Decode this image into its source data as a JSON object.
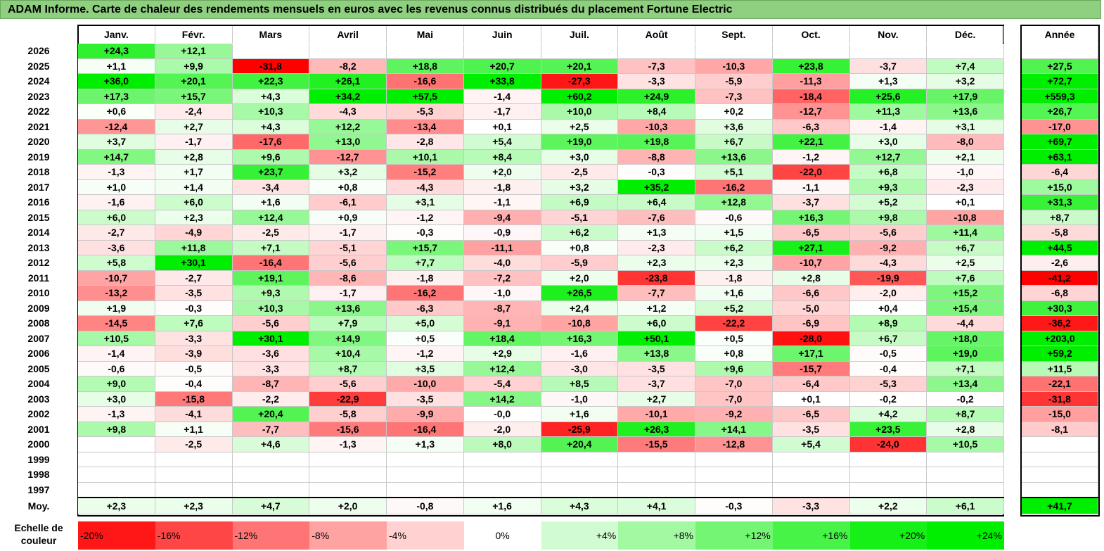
{
  "title": "ADAM Informe. Carte de chaleur des rendements mensuels en euros avec les revenus connus distribués du placement Fortune Electric",
  "chart_data": {
    "type": "heatmap",
    "title": "ADAM Informe. Carte de chaleur des rendements mensuels en euros avec les revenus connus distribués du placement Fortune Electric",
    "months": [
      "Janv.",
      "Févr.",
      "Mars",
      "Avril",
      "Mai",
      "Juin",
      "Juil.",
      "Août",
      "Sept.",
      "Oct.",
      "Nov.",
      "Déc."
    ],
    "year_header": "Année",
    "years": [
      "2026",
      "2025",
      "2024",
      "2023",
      "2022",
      "2021",
      "2020",
      "2019",
      "2018",
      "2017",
      "2016",
      "2015",
      "2014",
      "2013",
      "2012",
      "2011",
      "2010",
      "2009",
      "2008",
      "2007",
      "2006",
      "2005",
      "2004",
      "2003",
      "2002",
      "2001",
      "2000",
      "1999",
      "1998",
      "1997"
    ],
    "values": [
      [
        24.3,
        12.1,
        null,
        null,
        null,
        null,
        null,
        null,
        null,
        null,
        null,
        null
      ],
      [
        1.1,
        9.9,
        -31.8,
        -8.2,
        18.8,
        20.7,
        20.1,
        -7.3,
        -10.3,
        23.8,
        -3.7,
        7.4
      ],
      [
        36.0,
        20.1,
        22.3,
        26.1,
        -16.6,
        33.8,
        -27.3,
        -3.3,
        -5.9,
        -11.3,
        1.3,
        3.2
      ],
      [
        17.3,
        15.7,
        4.3,
        34.2,
        57.5,
        -1.4,
        60.2,
        24.9,
        -7.3,
        -18.4,
        25.6,
        17.9
      ],
      [
        0.6,
        -2.4,
        10.3,
        -4.3,
        -5.3,
        -1.7,
        10.0,
        8.4,
        0.2,
        -12.7,
        11.3,
        13.6
      ],
      [
        -12.4,
        2.7,
        4.3,
        12.2,
        -13.4,
        0.1,
        2.5,
        -10.3,
        3.6,
        -6.3,
        -1.4,
        3.1
      ],
      [
        3.7,
        -1.7,
        -17.6,
        13.0,
        -2.8,
        5.4,
        19.0,
        19.8,
        6.7,
        22.1,
        3.0,
        -8.0
      ],
      [
        14.7,
        2.8,
        9.6,
        -12.7,
        10.1,
        8.4,
        3.0,
        -8.8,
        13.6,
        -1.2,
        12.7,
        2.1
      ],
      [
        -1.3,
        1.7,
        23.7,
        3.2,
        -15.2,
        2.0,
        -2.5,
        -0.3,
        5.1,
        -22.0,
        6.8,
        -1.0
      ],
      [
        1.0,
        1.4,
        -3.4,
        0.8,
        -4.3,
        -1.8,
        3.2,
        35.2,
        -16.2,
        -1.1,
        9.3,
        -2.3
      ],
      [
        -1.6,
        6.0,
        1.6,
        -6.1,
        3.1,
        -1.1,
        6.9,
        6.4,
        12.8,
        -3.7,
        5.2,
        0.1
      ],
      [
        6.0,
        2.3,
        12.4,
        0.9,
        -1.2,
        -9.4,
        -5.1,
        -7.6,
        -0.6,
        16.3,
        9.8,
        -10.8
      ],
      [
        -2.7,
        -4.9,
        -2.5,
        -1.7,
        -0.3,
        -0.9,
        6.2,
        1.3,
        1.5,
        -6.5,
        -5.6,
        11.4
      ],
      [
        -3.6,
        11.8,
        7.1,
        -5.1,
        15.7,
        -11.1,
        0.8,
        -2.3,
        6.2,
        27.1,
        -9.2,
        6.7
      ],
      [
        5.8,
        30.1,
        -16.4,
        -5.6,
        7.7,
        -4.0,
        -5.9,
        2.3,
        2.3,
        -10.7,
        -4.3,
        2.5
      ],
      [
        -10.7,
        -2.7,
        19.1,
        -8.6,
        -1.8,
        -7.2,
        2.0,
        -23.8,
        -1.8,
        2.8,
        -19.9,
        7.6
      ],
      [
        -13.2,
        -3.5,
        9.3,
        -1.7,
        -16.2,
        -1.0,
        26.5,
        -7.7,
        1.6,
        -6.6,
        -2.0,
        15.2
      ],
      [
        1.9,
        -0.3,
        10.3,
        13.6,
        -6.3,
        -8.7,
        2.4,
        1.2,
        5.2,
        -5.0,
        0.4,
        15.4
      ],
      [
        -14.5,
        7.6,
        -5.6,
        7.9,
        5.0,
        -9.1,
        -10.8,
        6.0,
        -22.2,
        -6.9,
        8.9,
        -4.4
      ],
      [
        10.5,
        -3.3,
        30.1,
        14.9,
        0.5,
        18.4,
        16.3,
        50.1,
        0.5,
        -28.0,
        6.7,
        18.0
      ],
      [
        -1.4,
        -3.9,
        -3.6,
        10.4,
        -1.2,
        2.9,
        -1.6,
        13.8,
        0.8,
        17.1,
        -0.5,
        19.0
      ],
      [
        -0.6,
        -0.5,
        -3.3,
        8.7,
        3.5,
        12.4,
        -3.0,
        -3.5,
        9.6,
        -15.7,
        -0.4,
        7.1
      ],
      [
        9.0,
        -0.4,
        -8.7,
        -5.6,
        -10.0,
        -5.4,
        8.5,
        -3.7,
        -7.0,
        -6.4,
        -5.3,
        13.4
      ],
      [
        3.0,
        -15.8,
        -2.2,
        -22.9,
        -3.5,
        14.2,
        -1.0,
        2.7,
        -7.0,
        0.1,
        -0.2,
        -0.2
      ],
      [
        -1.3,
        -4.1,
        20.4,
        -5.8,
        -9.9,
        -0.0,
        1.6,
        -10.1,
        -9.2,
        -6.5,
        4.2,
        8.7
      ],
      [
        9.8,
        1.1,
        -7.7,
        -15.6,
        -16.4,
        -2.0,
        -25.9,
        26.3,
        14.1,
        -3.5,
        23.5,
        2.8
      ],
      [
        null,
        -2.5,
        4.6,
        -1.3,
        1.3,
        8.0,
        20.4,
        -15.5,
        -12.8,
        5.4,
        -24.0,
        10.5
      ],
      [
        null,
        null,
        null,
        null,
        null,
        null,
        null,
        null,
        null,
        null,
        null,
        null
      ],
      [
        null,
        null,
        null,
        null,
        null,
        null,
        null,
        null,
        null,
        null,
        null,
        null
      ],
      [
        null,
        null,
        null,
        null,
        null,
        null,
        null,
        null,
        null,
        null,
        null,
        null
      ]
    ],
    "annual": [
      null,
      27.5,
      72.7,
      559.3,
      26.7,
      -17.0,
      69.7,
      63.1,
      -6.4,
      15.0,
      31.3,
      8.7,
      -5.8,
      44.5,
      -2.6,
      -41.2,
      -6.8,
      30.3,
      -36.2,
      203.0,
      59.2,
      11.5,
      -22.1,
      -31.8,
      -15.0,
      -8.1,
      null,
      null,
      null,
      null
    ],
    "average_label": "Moy.",
    "average": [
      2.3,
      2.3,
      4.7,
      2.0,
      -0.8,
      1.6,
      4.3,
      4.1,
      -0.3,
      -3.3,
      2.2,
      6.1
    ],
    "average_annual": 41.7,
    "scale_label": "Echelle de couleur",
    "scale": [
      "-20%",
      "-16%",
      "-12%",
      "-8%",
      "-4%",
      "0%",
      "+4%",
      "+8%",
      "+12%",
      "+16%",
      "+20%",
      "+24%"
    ],
    "scale_values": [
      -20,
      -16,
      -12,
      -8,
      -4,
      0,
      4,
      8,
      12,
      16,
      20,
      24
    ],
    "colors": {
      "negative": "#ff0000",
      "neutral": "#ffffff",
      "positive": "#00ee00"
    }
  }
}
